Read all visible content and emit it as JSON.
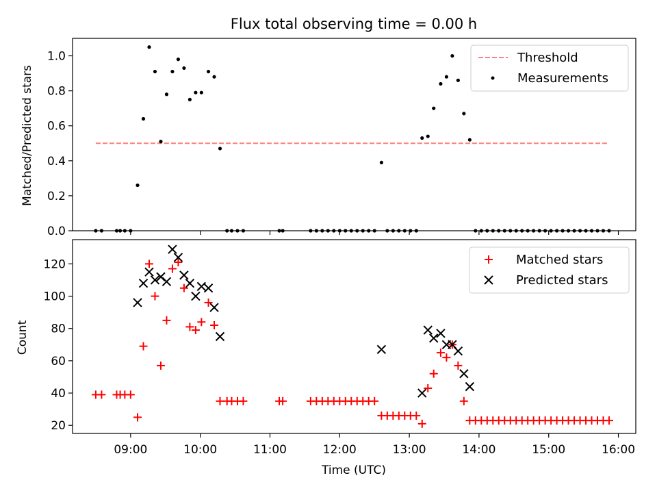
{
  "chart_data": [
    {
      "type": "scatter",
      "title": "Flux total observing time = 0.00 h",
      "xlabel": "",
      "ylabel": "Matched/Predicted stars",
      "xlim": [
        "08:10",
        "16:15"
      ],
      "ylim": [
        0,
        1.1
      ],
      "yticks": [
        "0.0",
        "0.2",
        "0.4",
        "0.6",
        "0.8",
        "1.0"
      ],
      "xtick_values": [
        "09:00",
        "10:00",
        "11:00",
        "12:00",
        "13:00",
        "14:00",
        "15:00",
        "16:00"
      ],
      "legend_position": "top-right",
      "legend": [
        {
          "label": "Threshold",
          "color": "#ff7f7f",
          "style": "dashed-line"
        },
        {
          "label": "Measurements",
          "color": "#000000",
          "style": "dot"
        }
      ],
      "threshold": {
        "name": "Threshold",
        "y": 0.5,
        "x_start": "08:30",
        "x_end": "15:52",
        "color": "#ff7f7f"
      },
      "series": [
        {
          "name": "Measurements",
          "color": "#000000",
          "marker": "dot",
          "points": [
            [
              "08:30",
              0
            ],
            [
              "08:35",
              0
            ],
            [
              "08:48",
              0
            ],
            [
              "08:51",
              0
            ],
            [
              "08:55",
              0
            ],
            [
              "09:00",
              0
            ],
            [
              "09:06",
              0.26
            ],
            [
              "09:11",
              0.64
            ],
            [
              "09:16",
              1.05
            ],
            [
              "09:21",
              0.91
            ],
            [
              "09:26",
              0.51
            ],
            [
              "09:31",
              0.78
            ],
            [
              "09:36",
              0.91
            ],
            [
              "09:41",
              0.98
            ],
            [
              "09:46",
              0.93
            ],
            [
              "09:51",
              0.75
            ],
            [
              "09:56",
              0.79
            ],
            [
              "10:01",
              0.79
            ],
            [
              "10:07",
              0.91
            ],
            [
              "10:12",
              0.88
            ],
            [
              "10:17",
              0.47
            ],
            [
              "10:23",
              0
            ],
            [
              "10:27",
              0
            ],
            [
              "10:32",
              0
            ],
            [
              "10:37",
              0
            ],
            [
              "11:08",
              0
            ],
            [
              "11:11",
              0
            ],
            [
              "11:35",
              0
            ],
            [
              "11:40",
              0
            ],
            [
              "11:45",
              0
            ],
            [
              "11:50",
              0
            ],
            [
              "11:55",
              0
            ],
            [
              "12:00",
              0
            ],
            [
              "12:05",
              0
            ],
            [
              "12:10",
              0
            ],
            [
              "12:15",
              0
            ],
            [
              "12:20",
              0
            ],
            [
              "12:25",
              0
            ],
            [
              "12:30",
              0
            ],
            [
              "12:36",
              0.39
            ],
            [
              "12:41",
              0
            ],
            [
              "12:46",
              0
            ],
            [
              "12:51",
              0
            ],
            [
              "12:56",
              0
            ],
            [
              "13:01",
              0
            ],
            [
              "13:06",
              0
            ],
            [
              "13:11",
              0.53
            ],
            [
              "13:16",
              0.54
            ],
            [
              "13:21",
              0.7
            ],
            [
              "13:27",
              0.84
            ],
            [
              "13:32",
              0.88
            ],
            [
              "13:37",
              1.0
            ],
            [
              "13:42",
              0.86
            ],
            [
              "13:47",
              0.67
            ],
            [
              "13:52",
              0.52
            ],
            [
              "13:57",
              0
            ],
            [
              "14:02",
              0
            ],
            [
              "14:07",
              0
            ],
            [
              "14:12",
              0
            ],
            [
              "14:17",
              0
            ],
            [
              "14:22",
              0
            ],
            [
              "14:27",
              0
            ],
            [
              "14:32",
              0
            ],
            [
              "14:37",
              0
            ],
            [
              "14:42",
              0
            ],
            [
              "14:47",
              0
            ],
            [
              "14:52",
              0
            ],
            [
              "14:57",
              0
            ],
            [
              "15:02",
              0
            ],
            [
              "15:07",
              0
            ],
            [
              "15:12",
              0
            ],
            [
              "15:17",
              0
            ],
            [
              "15:22",
              0
            ],
            [
              "15:27",
              0
            ],
            [
              "15:32",
              0
            ],
            [
              "15:37",
              0
            ],
            [
              "15:42",
              0
            ],
            [
              "15:47",
              0
            ],
            [
              "15:52",
              0
            ]
          ]
        }
      ]
    },
    {
      "type": "scatter",
      "title": "",
      "xlabel": "Time (UTC)",
      "ylabel": "Count",
      "xlim": [
        "08:10",
        "16:15"
      ],
      "ylim": [
        15,
        135
      ],
      "yticks": [
        "20",
        "40",
        "60",
        "80",
        "100",
        "120"
      ],
      "xticks": [
        "09:00",
        "10:00",
        "11:00",
        "12:00",
        "13:00",
        "14:00",
        "15:00",
        "16:00"
      ],
      "legend_position": "top-right",
      "legend": [
        {
          "label": "Matched stars",
          "color": "#ff0000",
          "style": "plus"
        },
        {
          "label": "Predicted stars",
          "color": "#000000",
          "style": "x"
        }
      ],
      "series": [
        {
          "name": "Matched stars",
          "color": "#ff0000",
          "marker": "plus",
          "points": [
            [
              "08:30",
              39
            ],
            [
              "08:35",
              39
            ],
            [
              "08:48",
              39
            ],
            [
              "08:51",
              39
            ],
            [
              "08:55",
              39
            ],
            [
              "09:00",
              39
            ],
            [
              "09:06",
              25
            ],
            [
              "09:11",
              69
            ],
            [
              "09:16",
              120
            ],
            [
              "09:21",
              100
            ],
            [
              "09:26",
              57
            ],
            [
              "09:31",
              85
            ],
            [
              "09:36",
              117
            ],
            [
              "09:41",
              121
            ],
            [
              "09:46",
              105
            ],
            [
              "09:51",
              81
            ],
            [
              "09:56",
              79
            ],
            [
              "10:01",
              84
            ],
            [
              "10:07",
              96
            ],
            [
              "10:12",
              82
            ],
            [
              "10:17",
              35
            ],
            [
              "10:23",
              35
            ],
            [
              "10:27",
              35
            ],
            [
              "10:32",
              35
            ],
            [
              "10:37",
              35
            ],
            [
              "11:08",
              35
            ],
            [
              "11:11",
              35
            ],
            [
              "11:35",
              35
            ],
            [
              "11:40",
              35
            ],
            [
              "11:45",
              35
            ],
            [
              "11:50",
              35
            ],
            [
              "11:55",
              35
            ],
            [
              "12:00",
              35
            ],
            [
              "12:05",
              35
            ],
            [
              "12:10",
              35
            ],
            [
              "12:15",
              35
            ],
            [
              "12:20",
              35
            ],
            [
              "12:25",
              35
            ],
            [
              "12:30",
              35
            ],
            [
              "12:36",
              26
            ],
            [
              "12:41",
              26
            ],
            [
              "12:46",
              26
            ],
            [
              "12:51",
              26
            ],
            [
              "12:56",
              26
            ],
            [
              "13:01",
              26
            ],
            [
              "13:06",
              26
            ],
            [
              "13:11",
              21
            ],
            [
              "13:16",
              43
            ],
            [
              "13:21",
              52
            ],
            [
              "13:27",
              65
            ],
            [
              "13:32",
              62
            ],
            [
              "13:37",
              70
            ],
            [
              "13:42",
              57
            ],
            [
              "13:47",
              35
            ],
            [
              "13:52",
              23
            ],
            [
              "13:57",
              23
            ],
            [
              "14:02",
              23
            ],
            [
              "14:07",
              23
            ],
            [
              "14:12",
              23
            ],
            [
              "14:17",
              23
            ],
            [
              "14:22",
              23
            ],
            [
              "14:27",
              23
            ],
            [
              "14:32",
              23
            ],
            [
              "14:37",
              23
            ],
            [
              "14:42",
              23
            ],
            [
              "14:47",
              23
            ],
            [
              "14:52",
              23
            ],
            [
              "14:57",
              23
            ],
            [
              "15:02",
              23
            ],
            [
              "15:07",
              23
            ],
            [
              "15:12",
              23
            ],
            [
              "15:17",
              23
            ],
            [
              "15:22",
              23
            ],
            [
              "15:27",
              23
            ],
            [
              "15:32",
              23
            ],
            [
              "15:37",
              23
            ],
            [
              "15:42",
              23
            ],
            [
              "15:47",
              23
            ],
            [
              "15:52",
              23
            ]
          ]
        },
        {
          "name": "Predicted stars",
          "color": "#000000",
          "marker": "x",
          "points": [
            [
              "09:06",
              96
            ],
            [
              "09:11",
              108
            ],
            [
              "09:16",
              115
            ],
            [
              "09:21",
              110
            ],
            [
              "09:26",
              112
            ],
            [
              "09:31",
              109
            ],
            [
              "09:36",
              129
            ],
            [
              "09:41",
              124
            ],
            [
              "09:46",
              113
            ],
            [
              "09:51",
              108
            ],
            [
              "09:56",
              100
            ],
            [
              "10:01",
              106
            ],
            [
              "10:07",
              105
            ],
            [
              "10:12",
              93
            ],
            [
              "10:17",
              75
            ],
            [
              "12:36",
              67
            ],
            [
              "13:11",
              40
            ],
            [
              "13:16",
              79
            ],
            [
              "13:21",
              74
            ],
            [
              "13:27",
              77
            ],
            [
              "13:32",
              70
            ],
            [
              "13:37",
              70
            ],
            [
              "13:42",
              66
            ],
            [
              "13:47",
              52
            ],
            [
              "13:52",
              44
            ]
          ]
        }
      ]
    }
  ]
}
